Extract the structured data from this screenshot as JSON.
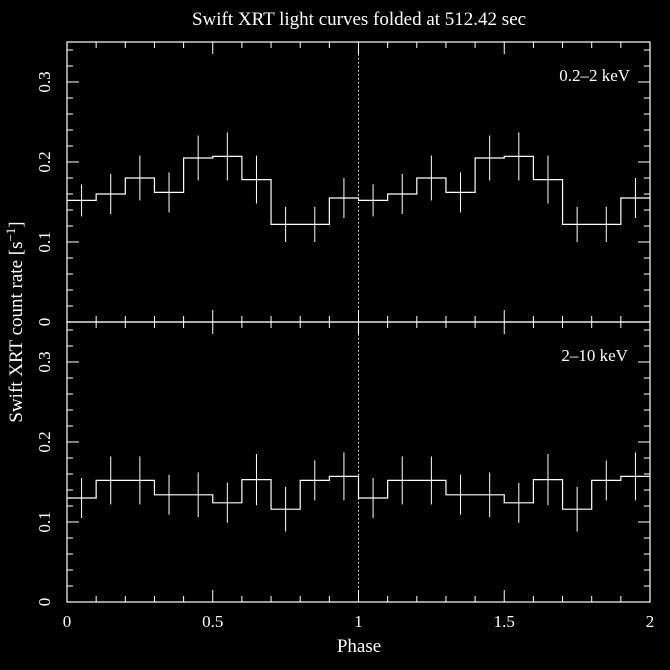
{
  "chart_data": {
    "type": "line",
    "title": "Swift XRT light curves folded at 512.42 sec",
    "xlabel": "Phase",
    "ylabel": "Swift XRT count rate [s",
    "ylabel_exp": "−1",
    "ylabel_close": "]",
    "xlim": [
      0,
      2
    ],
    "x_ticks": [
      "0",
      "0.5",
      "1",
      "1.5",
      "2"
    ],
    "y_ticks": [
      "0",
      "0.1",
      "0.2",
      "0.3"
    ],
    "grid": false,
    "panels": [
      {
        "band_label": "0.2–2 keV",
        "ylim": [
          0,
          0.35
        ],
        "bin_width": 0.1,
        "x": [
          0.05,
          0.15,
          0.25,
          0.35,
          0.45,
          0.55,
          0.65,
          0.75,
          0.85,
          0.95,
          1.05,
          1.15,
          1.25,
          1.35,
          1.45,
          1.55,
          1.65,
          1.75,
          1.85,
          1.95
        ],
        "y": [
          0.152,
          0.16,
          0.18,
          0.162,
          0.205,
          0.207,
          0.178,
          0.122,
          0.122,
          0.155,
          0.152,
          0.16,
          0.18,
          0.162,
          0.205,
          0.207,
          0.178,
          0.122,
          0.122,
          0.155
        ],
        "err": [
          0.02,
          0.025,
          0.028,
          0.025,
          0.028,
          0.03,
          0.03,
          0.022,
          0.022,
          0.025,
          0.02,
          0.025,
          0.028,
          0.025,
          0.028,
          0.03,
          0.03,
          0.022,
          0.022,
          0.025
        ]
      },
      {
        "band_label": "2–10 keV",
        "ylim": [
          0,
          0.35
        ],
        "bin_width": 0.1,
        "x": [
          0.05,
          0.15,
          0.25,
          0.35,
          0.45,
          0.55,
          0.65,
          0.75,
          0.85,
          0.95,
          1.05,
          1.15,
          1.25,
          1.35,
          1.45,
          1.55,
          1.65,
          1.75,
          1.85,
          1.95
        ],
        "y": [
          0.13,
          0.152,
          0.152,
          0.134,
          0.134,
          0.124,
          0.153,
          0.116,
          0.152,
          0.157,
          0.13,
          0.152,
          0.152,
          0.134,
          0.134,
          0.124,
          0.153,
          0.116,
          0.152,
          0.157
        ],
        "err": [
          0.025,
          0.03,
          0.03,
          0.025,
          0.028,
          0.025,
          0.032,
          0.028,
          0.025,
          0.03,
          0.025,
          0.03,
          0.03,
          0.025,
          0.028,
          0.025,
          0.032,
          0.028,
          0.025,
          0.03
        ]
      }
    ]
  }
}
